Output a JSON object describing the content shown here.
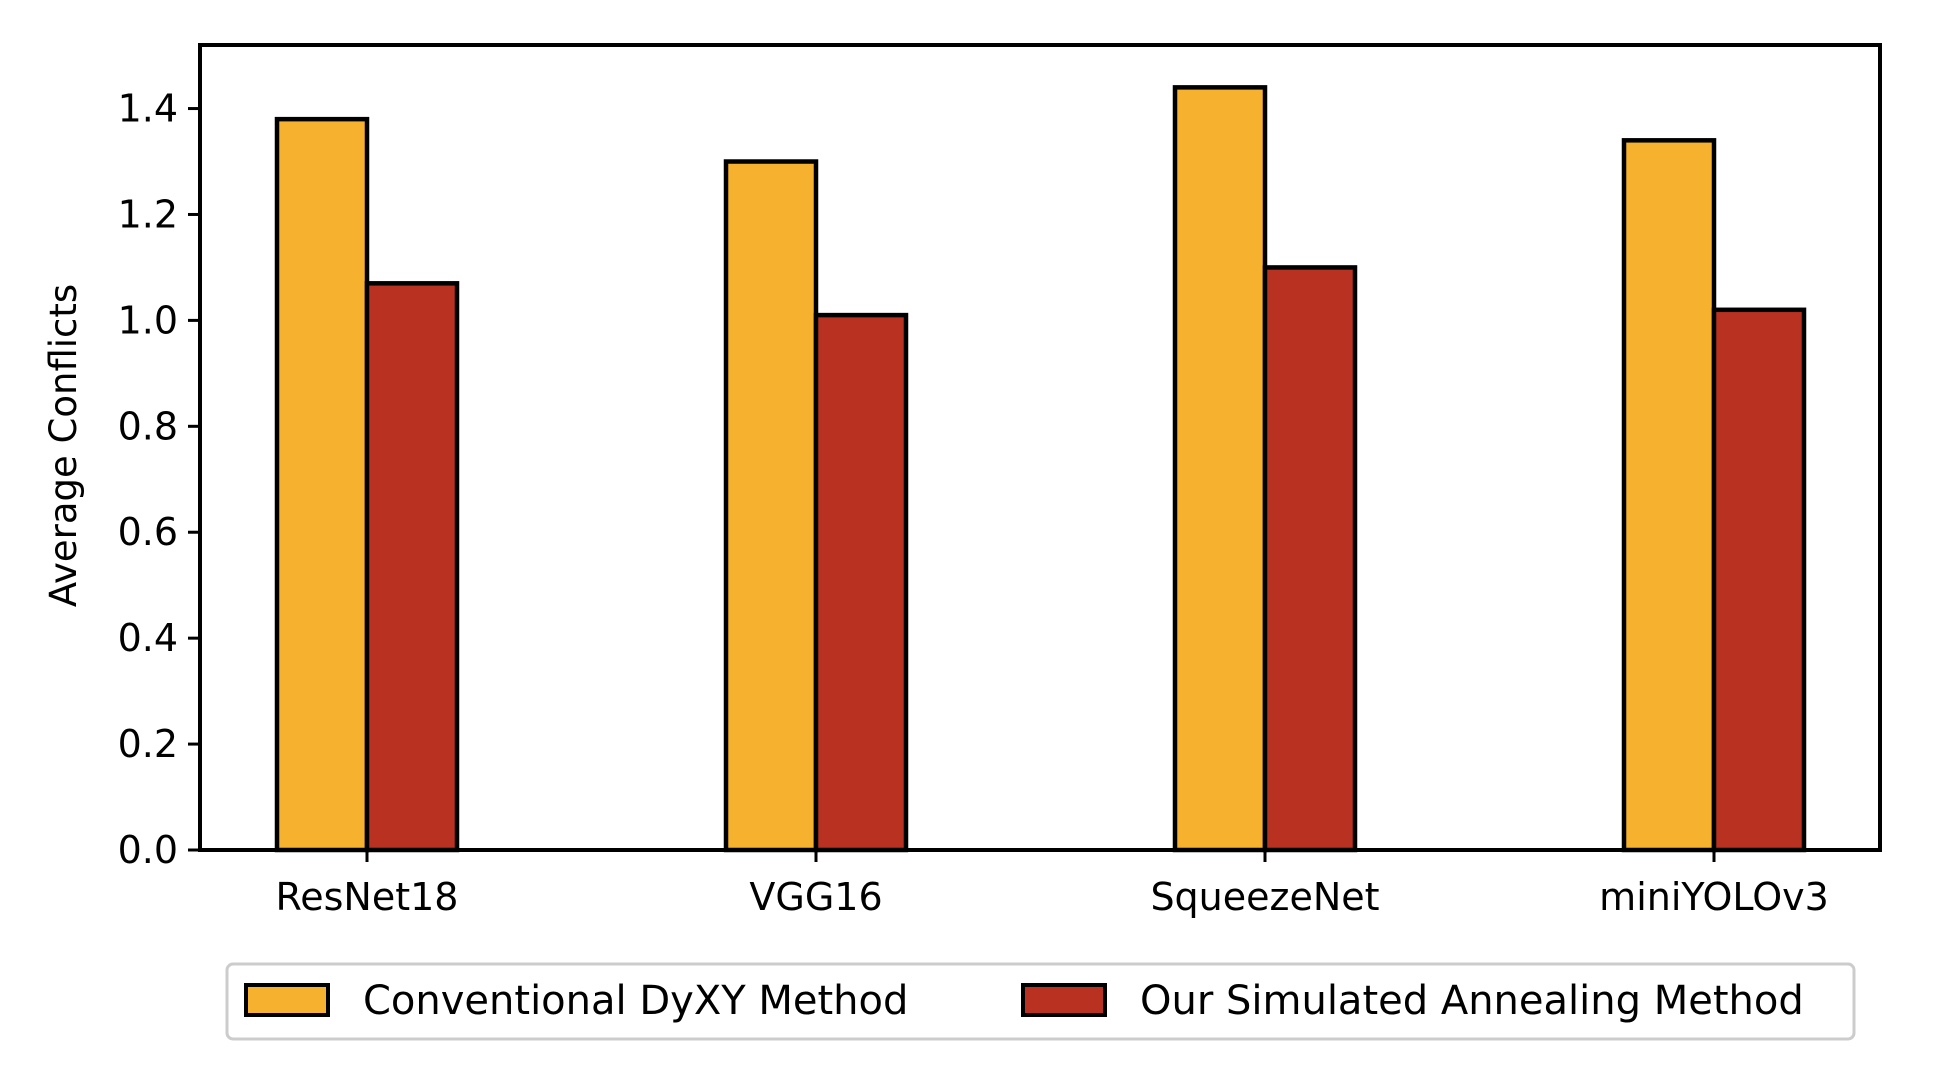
{
  "chart_data": {
    "type": "bar",
    "categories": [
      "ResNet18",
      "VGG16",
      "SqueezeNet",
      "miniYOLOv3"
    ],
    "series": [
      {
        "name": "Conventional DyXY Method",
        "color": "#F6B12E",
        "values": [
          1.38,
          1.3,
          1.44,
          1.34
        ]
      },
      {
        "name": "Our Simulated Annealing Method",
        "color": "#B93121",
        "values": [
          1.07,
          1.01,
          1.1,
          1.02
        ]
      }
    ],
    "title": "",
    "xlabel": "",
    "ylabel": "Average Conflicts",
    "ylim": [
      0,
      1.52
    ],
    "yticks": [
      "0.0",
      "0.2",
      "0.4",
      "0.6",
      "0.8",
      "1.0",
      "1.2",
      "1.4"
    ],
    "grid": false,
    "legend_position": "bottom",
    "edge_color": "#000000"
  }
}
